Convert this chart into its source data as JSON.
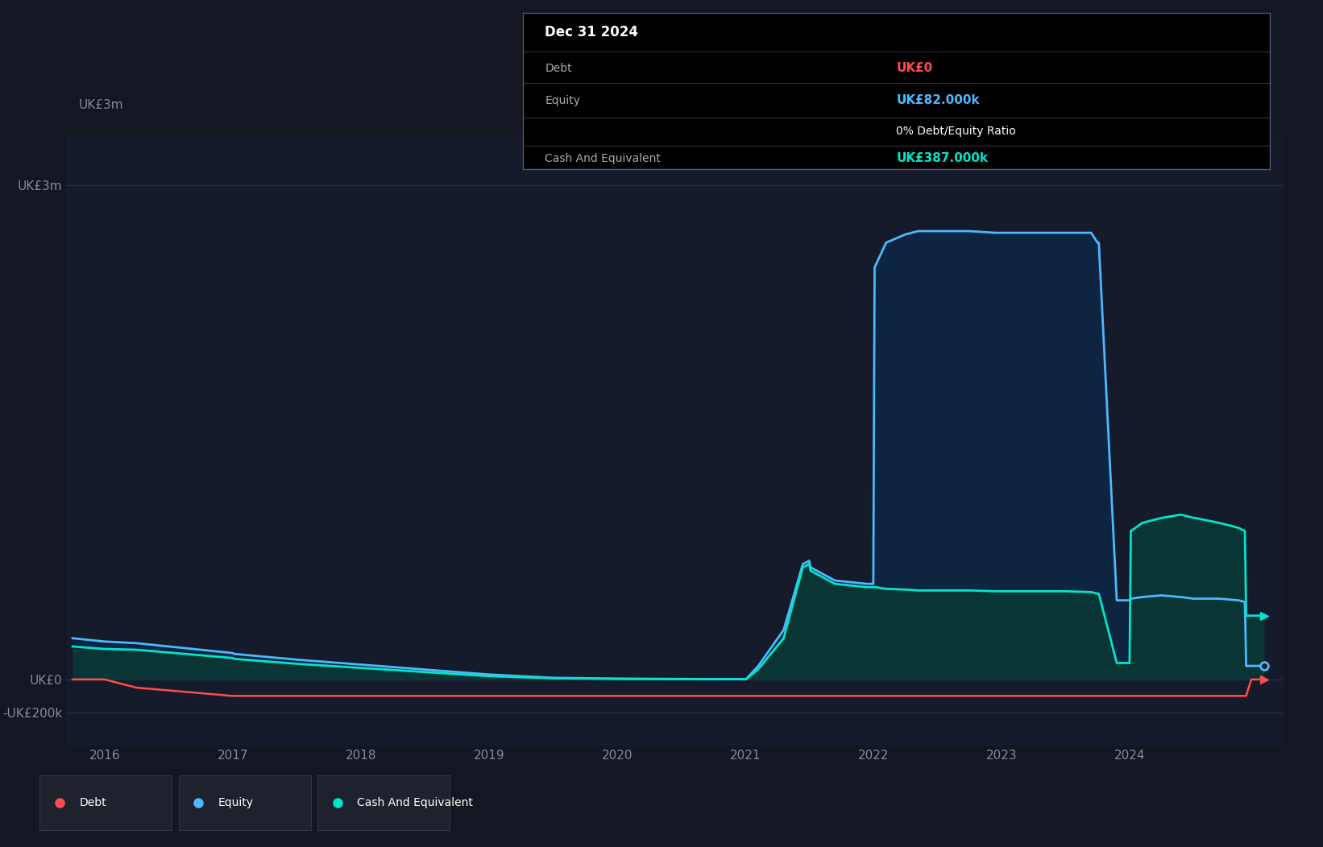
{
  "bg_color": "#131722",
  "plot_bg_color": "#151b2a",
  "grid_color": "#2a2e3a",
  "ylabel": "UK£3m",
  "ylim": [
    -400000,
    3300000
  ],
  "yticks": [
    -200000,
    0,
    3000000
  ],
  "ytick_labels": [
    "-UK£200k",
    "UK£0",
    "UK£3m"
  ],
  "xtick_labels": [
    "2016",
    "2017",
    "2018",
    "2019",
    "2020",
    "2021",
    "2022",
    "2023",
    "2024",
    ""
  ],
  "equity_color": "#4db8ff",
  "equity_fill": "#0d2540",
  "cash_color": "#00e5cc",
  "cash_fill": "#0a3535",
  "debt_color": "#ff4d4d",
  "legend_bg": "#1e222d",
  "debt_label": "Debt",
  "equity_label": "Equity",
  "cash_label": "Cash And Equivalent",
  "tooltip_date": "Dec 31 2024",
  "tooltip_debt_val": "UK£0",
  "tooltip_equity_val": "UK£82.000k",
  "tooltip_ratio": "0% Debt/Equity Ratio",
  "tooltip_cash_val": "UK£387.000k",
  "x_data": [
    2015.75,
    2016.0,
    2016.25,
    2017.0,
    2017.01,
    2017.5,
    2018.0,
    2018.5,
    2019.0,
    2019.5,
    2020.0,
    2020.5,
    2020.9,
    2021.0,
    2021.01,
    2021.1,
    2021.3,
    2021.45,
    2021.5,
    2021.51,
    2021.7,
    2021.95,
    2022.0,
    2022.01,
    2022.1,
    2022.25,
    2022.35,
    2022.36,
    2022.5,
    2022.75,
    2022.95,
    2023.0,
    2023.01,
    2023.5,
    2023.7,
    2023.75,
    2023.76,
    2023.9,
    2024.0,
    2024.01,
    2024.1,
    2024.25,
    2024.4,
    2024.5,
    2024.51,
    2024.7,
    2024.85,
    2024.9,
    2024.91,
    2024.95,
    2025.05
  ],
  "equity_data": [
    250000,
    230000,
    220000,
    160000,
    155000,
    120000,
    90000,
    60000,
    30000,
    10000,
    5000,
    3000,
    2000,
    2000,
    5000,
    80000,
    300000,
    700000,
    720000,
    680000,
    600000,
    580000,
    580000,
    2500000,
    2650000,
    2700000,
    2720000,
    2720000,
    2720000,
    2720000,
    2710000,
    2710000,
    2710000,
    2710000,
    2710000,
    2650000,
    2650000,
    480000,
    480000,
    490000,
    500000,
    510000,
    500000,
    490000,
    490000,
    490000,
    480000,
    470000,
    82000,
    82000,
    82000
  ],
  "cash_data": [
    200000,
    185000,
    180000,
    130000,
    125000,
    95000,
    70000,
    45000,
    20000,
    7000,
    3000,
    1500,
    1000,
    1000,
    3000,
    60000,
    250000,
    680000,
    700000,
    660000,
    580000,
    560000,
    560000,
    560000,
    550000,
    545000,
    540000,
    540000,
    540000,
    540000,
    535000,
    535000,
    535000,
    535000,
    530000,
    520000,
    520000,
    100000,
    100000,
    900000,
    950000,
    980000,
    1000000,
    980000,
    980000,
    950000,
    920000,
    900000,
    387000,
    387000,
    387000
  ],
  "debt_data": [
    0,
    0,
    -50000,
    -100000,
    -100000,
    -100000,
    -100000,
    -100000,
    -100000,
    -100000,
    -100000,
    -100000,
    -100000,
    -100000,
    -100000,
    -100000,
    -100000,
    -100000,
    -100000,
    -100000,
    -100000,
    -100000,
    -100000,
    -100000,
    -100000,
    -100000,
    -100000,
    -100000,
    -100000,
    -100000,
    -100000,
    -100000,
    -100000,
    -100000,
    -100000,
    -100000,
    -100000,
    -100000,
    -100000,
    -100000,
    -100000,
    -100000,
    -100000,
    -100000,
    -100000,
    -100000,
    -100000,
    -100000,
    -100000,
    0,
    0
  ]
}
